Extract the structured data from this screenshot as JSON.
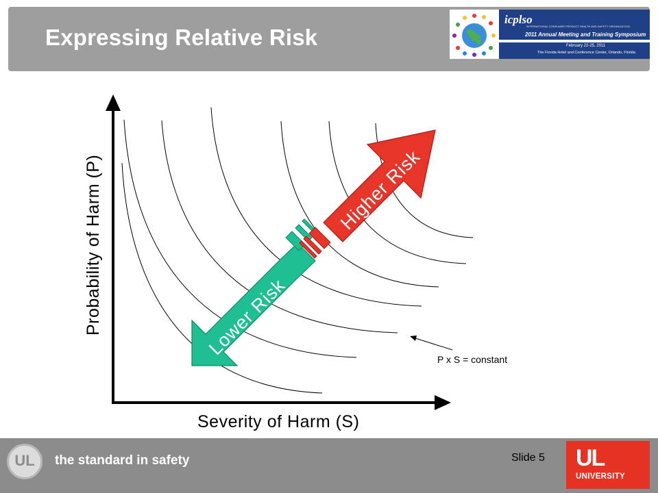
{
  "slide": {
    "title": "Expressing Relative Risk",
    "slide_number": "Slide 5"
  },
  "banner": {
    "org": "icplso",
    "sub": "INTERNATIONAL CONSUMER PRODUCT HEALTH AND SAFETY ORGANIZATION",
    "event": "2011 Annual Meeting and Training Symposium",
    "dates": "February 22-25, 2011",
    "venue": "The Florida Hotel and Conference Center, Orlando, Florida"
  },
  "diagram": {
    "y_axis_label": "Probability of Harm (P)",
    "x_axis_label": "Severity of Harm (S)",
    "higher_risk_label": "Higher Risk",
    "lower_risk_label": "Lower Risk",
    "curve_annotation": "P x S = constant",
    "curve_count": 7,
    "colors": {
      "higher": "#e8352a",
      "lower": "#1dbf93",
      "axis": "#000000"
    }
  },
  "footer": {
    "logo_text": "UL",
    "tagline": "the standard in safety",
    "brand_top": "UL",
    "brand_bottom": "UNIVERSITY"
  }
}
